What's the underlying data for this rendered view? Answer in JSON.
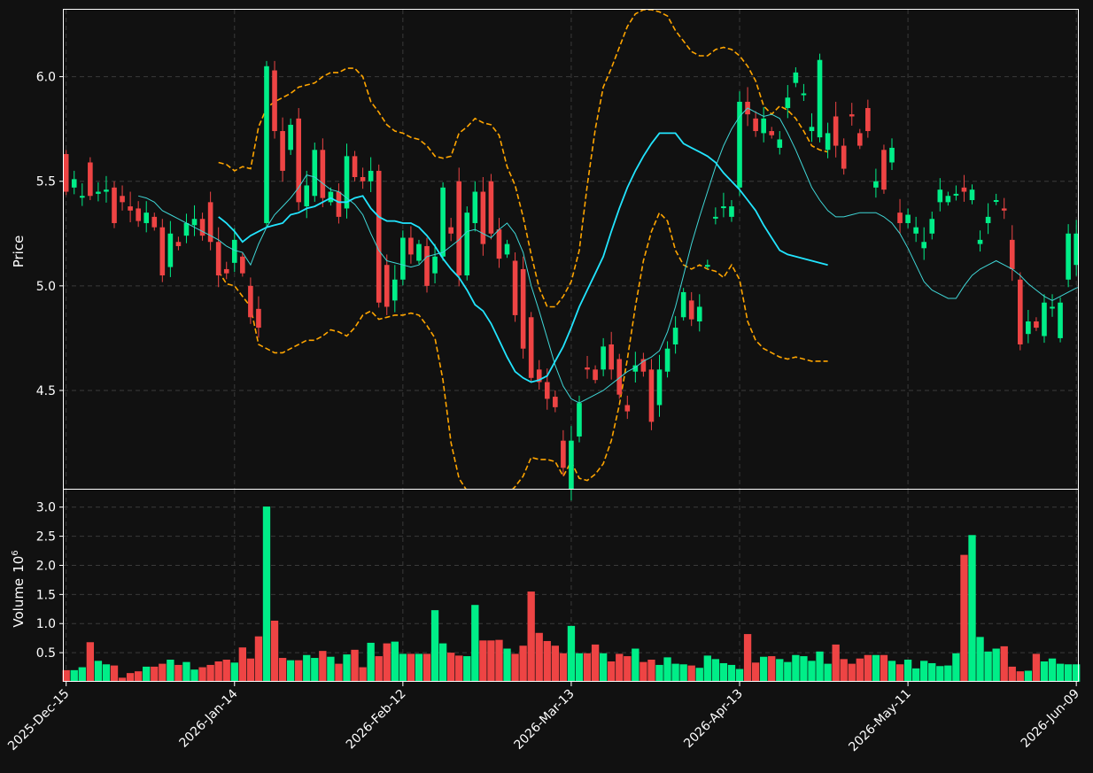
{
  "chart_data": {
    "type": "candlestick",
    "colors": {
      "background": "#111111",
      "up": "#00ee88",
      "down": "#ee4444",
      "ma_long": "#22e5ff",
      "ma_short": "#3fd6d6",
      "bollinger": "#ffa500",
      "axis": "#ffffff",
      "grid": "#3a3a3a"
    },
    "price_panel": {
      "ylabel": "Price",
      "ylim": [
        4.03,
        6.32
      ],
      "yticks": [
        4.5,
        5.0,
        5.5,
        6.0
      ],
      "ytick_labels": [
        "4.5",
        "5.0",
        "5.5",
        "6.0"
      ]
    },
    "volume_panel": {
      "ylabel": "Volume",
      "ylabel_multiplier": "10",
      "ylabel_exponent": "6",
      "ylim": [
        0,
        3.3
      ],
      "yticks": [
        0.5,
        1.0,
        1.5,
        2.0,
        2.5,
        3.0
      ],
      "ytick_labels": [
        "0.5",
        "1.0",
        "1.5",
        "2.0",
        "2.5",
        "3.0"
      ]
    },
    "x_ticks": [
      {
        "index": 0,
        "label": "2025-Dec-15"
      },
      {
        "index": 21,
        "label": "2026-Jan-14"
      },
      {
        "index": 42,
        "label": "2026-Feb-12"
      },
      {
        "index": 63,
        "label": "2026-Mar-13"
      },
      {
        "index": 84,
        "label": "2026-Apr-13"
      },
      {
        "index": 105,
        "label": "2026-May-11"
      },
      {
        "index": 126,
        "label": "2026-Jun-09"
      }
    ],
    "series": {
      "open": [
        5.63,
        5.47,
        5.43,
        5.59,
        5.44,
        5.45,
        5.47,
        5.43,
        5.38,
        5.37,
        5.3,
        5.33,
        5.28,
        5.09,
        5.21,
        5.24,
        5.29,
        5.32,
        5.4,
        5.21,
        5.08,
        5.11,
        5.14,
        5.0,
        4.89,
        5.3,
        6.03,
        5.74,
        5.65,
        5.8,
        5.38,
        5.43,
        5.65,
        5.4,
        5.45,
        5.37,
        5.62,
        5.52,
        5.5,
        5.55,
        5.1,
        4.93,
        5.03,
        5.23,
        5.12,
        5.19,
        5.06,
        5.14,
        5.28,
        5.5,
        5.05,
        5.3,
        5.45,
        5.5,
        5.27,
        5.15,
        5.12,
        5.08,
        4.85,
        4.6,
        4.54,
        4.47,
        4.26,
        4.03,
        4.28,
        4.61,
        4.6,
        4.6,
        4.72,
        4.65,
        4.43,
        4.59,
        4.65,
        4.6,
        4.43,
        4.59,
        4.72,
        4.85,
        4.93,
        4.83,
        5.1,
        5.33,
        5.38,
        5.33,
        5.47,
        5.88,
        5.8,
        5.73,
        5.74,
        5.66,
        5.85,
        5.97,
        5.92,
        5.74,
        5.71,
        5.65,
        5.81,
        5.67,
        5.82,
        5.73,
        5.85,
        5.47,
        5.65,
        5.59,
        5.35,
        5.3,
        5.25,
        5.18,
        5.25,
        5.4,
        5.4,
        5.44,
        5.47,
        5.41,
        5.2,
        5.3,
        5.41,
        5.37,
        5.22,
        5.03,
        4.77,
        4.83,
        4.76,
        4.9,
        4.75,
        5.03,
        5.1
      ],
      "close": [
        5.45,
        5.51,
        5.43,
        5.43,
        5.45,
        5.46,
        5.3,
        5.4,
        5.36,
        5.31,
        5.35,
        5.28,
        5.05,
        5.25,
        5.19,
        5.3,
        5.32,
        5.24,
        5.21,
        5.05,
        5.06,
        5.22,
        5.06,
        4.85,
        4.8,
        6.05,
        5.74,
        5.55,
        5.77,
        5.4,
        5.48,
        5.65,
        5.42,
        5.45,
        5.33,
        5.62,
        5.52,
        5.5,
        5.55,
        4.92,
        4.9,
        5.03,
        5.23,
        5.15,
        5.2,
        5.0,
        5.14,
        5.47,
        5.25,
        5.05,
        5.35,
        5.45,
        5.2,
        5.25,
        5.13,
        5.2,
        4.86,
        4.7,
        4.56,
        4.54,
        4.46,
        4.42,
        4.13,
        4.26,
        4.44,
        4.6,
        4.55,
        4.71,
        4.6,
        4.48,
        4.4,
        4.62,
        4.59,
        4.35,
        4.6,
        4.7,
        4.8,
        4.97,
        4.84,
        4.9,
        5.1,
        5.33,
        5.38,
        5.38,
        5.88,
        5.82,
        5.74,
        5.8,
        5.72,
        5.7,
        5.9,
        6.02,
        5.92,
        5.76,
        6.08,
        5.73,
        5.67,
        5.56,
        5.81,
        5.67,
        5.74,
        5.5,
        5.46,
        5.66,
        5.3,
        5.34,
        5.28,
        5.21,
        5.32,
        5.46,
        5.43,
        5.44,
        5.45,
        5.46,
        5.22,
        5.33,
        5.41,
        5.36,
        5.08,
        4.72,
        4.83,
        4.8,
        4.92,
        4.9,
        4.92,
        5.25,
        5.25
      ]
    },
    "volume_millions": [
      0.2,
      0.2,
      0.25,
      0.68,
      0.36,
      0.3,
      0.28,
      0.07,
      0.15,
      0.18,
      0.26,
      0.26,
      0.31,
      0.38,
      0.29,
      0.34,
      0.21,
      0.25,
      0.29,
      0.35,
      0.38,
      0.33,
      0.59,
      0.4,
      0.78,
      3.01,
      1.05,
      0.41,
      0.37,
      0.37,
      0.46,
      0.41,
      0.53,
      0.43,
      0.31,
      0.47,
      0.55,
      0.25,
      0.67,
      0.44,
      0.66,
      0.69,
      0.48,
      0.48,
      0.48,
      0.48,
      1.23,
      0.66,
      0.5,
      0.45,
      0.44,
      1.32,
      0.71,
      0.71,
      0.72,
      0.57,
      0.48,
      0.62,
      1.55,
      0.84,
      0.7,
      0.62,
      0.49,
      0.96,
      0.49,
      0.49,
      0.64,
      0.49,
      0.35,
      0.48,
      0.44,
      0.57,
      0.34,
      0.38,
      0.29,
      0.42,
      0.31,
      0.3,
      0.28,
      0.24,
      0.45,
      0.39,
      0.32,
      0.29,
      0.22,
      0.82,
      0.33,
      0.43,
      0.44,
      0.39,
      0.34,
      0.46,
      0.44,
      0.36,
      0.52,
      0.31,
      0.64,
      0.39,
      0.31,
      0.4,
      0.46,
      0.46,
      0.46,
      0.36,
      0.3,
      0.38,
      0.23,
      0.36,
      0.32,
      0.27,
      0.28,
      0.49,
      2.18,
      2.52,
      0.77,
      0.52,
      0.57,
      0.61,
      0.26,
      0.18,
      0.19,
      0.48,
      0.35,
      0.4,
      0.31,
      0.3,
      0.3
    ],
    "ma_short": {
      "start_index": 9,
      "values": [
        5.43,
        5.42,
        5.4,
        5.36,
        5.34,
        5.32,
        5.3,
        5.28,
        5.26,
        5.24,
        5.22,
        5.19,
        5.17,
        5.16,
        5.1,
        5.2,
        5.28,
        5.34,
        5.38,
        5.42,
        5.47,
        5.53,
        5.52,
        5.49,
        5.46,
        5.45,
        5.42,
        5.39,
        5.34,
        5.25,
        5.17,
        5.12,
        5.11,
        5.1,
        5.09,
        5.1,
        5.14,
        5.15,
        5.16,
        5.19,
        5.22,
        5.26,
        5.27,
        5.25,
        5.23,
        5.27,
        5.3,
        5.25,
        5.16,
        5.0,
        4.88,
        4.75,
        4.62,
        4.52,
        4.46,
        4.44,
        4.46,
        4.48,
        4.5,
        4.53,
        4.56,
        4.59,
        4.61,
        4.64,
        4.66,
        4.69,
        4.78,
        4.9,
        5.05,
        5.2,
        5.33,
        5.45,
        5.57,
        5.67,
        5.75,
        5.81,
        5.85,
        5.83,
        5.81,
        5.82,
        5.8,
        5.73,
        5.65,
        5.56,
        5.47,
        5.41,
        5.36,
        5.33,
        5.33,
        5.34,
        5.35,
        5.35,
        5.35,
        5.33,
        5.3,
        5.25,
        5.18,
        5.1,
        5.02,
        4.98,
        4.96,
        4.94,
        4.94,
        5.0,
        5.05,
        5.08,
        5.1,
        5.12,
        5.1,
        5.08,
        5.05,
        5.01,
        4.98,
        4.95,
        4.93,
        4.95,
        4.97,
        4.99,
        5.0
      ]
    },
    "ma_long": {
      "start_index": 19,
      "values": [
        5.33,
        5.3,
        5.26,
        5.21,
        5.24,
        5.26,
        5.28,
        5.29,
        5.3,
        5.34,
        5.35,
        5.37,
        5.38,
        5.4,
        5.42,
        5.4,
        5.4,
        5.42,
        5.43,
        5.37,
        5.33,
        5.31,
        5.31,
        5.3,
        5.3,
        5.28,
        5.24,
        5.19,
        5.13,
        5.08,
        5.04,
        4.98,
        4.91,
        4.88,
        4.82,
        4.74,
        4.66,
        4.59,
        4.56,
        4.54,
        4.55,
        4.57,
        4.64,
        4.71,
        4.8,
        4.9,
        4.98,
        5.06,
        5.14,
        5.26,
        5.37,
        5.47,
        5.55,
        5.62,
        5.68,
        5.73,
        5.73,
        5.73,
        5.68,
        5.66,
        5.64,
        5.62,
        5.59,
        5.54,
        5.5,
        5.46,
        5.41,
        5.36,
        5.29,
        5.23,
        5.17,
        5.15,
        5.14,
        5.13,
        5.12,
        5.11,
        5.1
      ]
    },
    "bollinger_upper": {
      "start_index": 19,
      "values": [
        5.59,
        5.58,
        5.55,
        5.57,
        5.56,
        5.76,
        5.85,
        5.88,
        5.9,
        5.92,
        5.95,
        5.96,
        5.97,
        6.0,
        6.02,
        6.02,
        6.04,
        6.04,
        6.0,
        5.88,
        5.83,
        5.77,
        5.74,
        5.73,
        5.71,
        5.7,
        5.67,
        5.62,
        5.61,
        5.62,
        5.73,
        5.76,
        5.8,
        5.78,
        5.77,
        5.72,
        5.57,
        5.48,
        5.33,
        5.15,
        4.99,
        4.9,
        4.9,
        4.95,
        5.02,
        5.17,
        5.48,
        5.75,
        5.95,
        6.04,
        6.14,
        6.24,
        6.3,
        6.32,
        6.32,
        6.31,
        6.29,
        6.22,
        6.17,
        6.12,
        6.1,
        6.1,
        6.13,
        6.14,
        6.13,
        6.1,
        6.05,
        5.98,
        5.86,
        5.82,
        5.86,
        5.84,
        5.8,
        5.74,
        5.67,
        5.65,
        5.64
      ]
    },
    "bollinger_lower": {
      "start_index": 19,
      "values": [
        5.07,
        5.01,
        5.0,
        4.95,
        4.9,
        4.72,
        4.7,
        4.68,
        4.68,
        4.7,
        4.72,
        4.74,
        4.74,
        4.76,
        4.79,
        4.78,
        4.76,
        4.8,
        4.86,
        4.88,
        4.84,
        4.85,
        4.86,
        4.86,
        4.87,
        4.86,
        4.81,
        4.75,
        4.55,
        4.25,
        4.08,
        4.02,
        4.0,
        3.98,
        3.97,
        3.98,
        4.0,
        4.04,
        4.09,
        4.18,
        4.17,
        4.17,
        4.16,
        4.09,
        4.16,
        4.08,
        4.07,
        4.1,
        4.15,
        4.26,
        4.43,
        4.65,
        4.9,
        5.12,
        5.26,
        5.35,
        5.31,
        5.17,
        5.1,
        5.08,
        5.1,
        5.08,
        5.07,
        5.04,
        5.1,
        5.03,
        4.83,
        4.74,
        4.7,
        4.68,
        4.66,
        4.65,
        4.66,
        4.65,
        4.64,
        4.64,
        4.64
      ]
    }
  }
}
